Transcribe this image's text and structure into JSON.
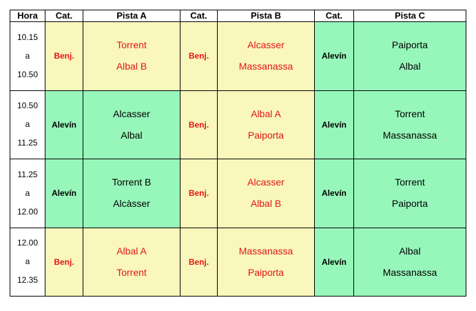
{
  "headers": [
    "Hora",
    "Cat.",
    "Pista A",
    "Cat.",
    "Pista B",
    "Cat.",
    "Pista C"
  ],
  "rows": [
    {
      "hora": [
        "10.15",
        "a",
        "10.50"
      ],
      "cells": [
        {
          "cat": "Benj.",
          "teams": [
            "Torrent",
            "Albal B"
          ]
        },
        {
          "cat": "Benj.",
          "teams": [
            "Alcasser",
            "Massanassa"
          ]
        },
        {
          "cat": "Alevín",
          "teams": [
            "Paiporta",
            "Albal"
          ]
        }
      ]
    },
    {
      "hora": [
        "10.50",
        "a",
        "11.25"
      ],
      "cells": [
        {
          "cat": "Alevín",
          "teams": [
            "Alcasser",
            "Albal"
          ]
        },
        {
          "cat": "Benj.",
          "teams": [
            "Albal A",
            "Paiporta"
          ]
        },
        {
          "cat": "Alevín",
          "teams": [
            "Torrent",
            "Massanassa"
          ]
        }
      ]
    },
    {
      "hora": [
        "11.25",
        "a",
        "12.00"
      ],
      "cells": [
        {
          "cat": "Alevín",
          "teams": [
            "Torrent B",
            "Alcàsser"
          ]
        },
        {
          "cat": "Benj.",
          "teams": [
            "Alcasser",
            "Albal B"
          ]
        },
        {
          "cat": "Alevín",
          "teams": [
            "Torrent",
            "Paiporta"
          ]
        }
      ]
    },
    {
      "hora": [
        "12.00",
        "a",
        "12.35"
      ],
      "cells": [
        {
          "cat": "Benj.",
          "teams": [
            "Albal A",
            "Torrent"
          ]
        },
        {
          "cat": "Benj.",
          "teams": [
            "Massanassa",
            "Paiporta"
          ]
        },
        {
          "cat": "Alevín",
          "teams": [
            "Albal",
            "Massanassa"
          ]
        }
      ]
    }
  ],
  "colors": {
    "benjamin_fill": "#f9f7bb",
    "benjamin_text": "#e31515",
    "alevin_fill": "#97f7bb",
    "alevin_text": "#000000"
  }
}
